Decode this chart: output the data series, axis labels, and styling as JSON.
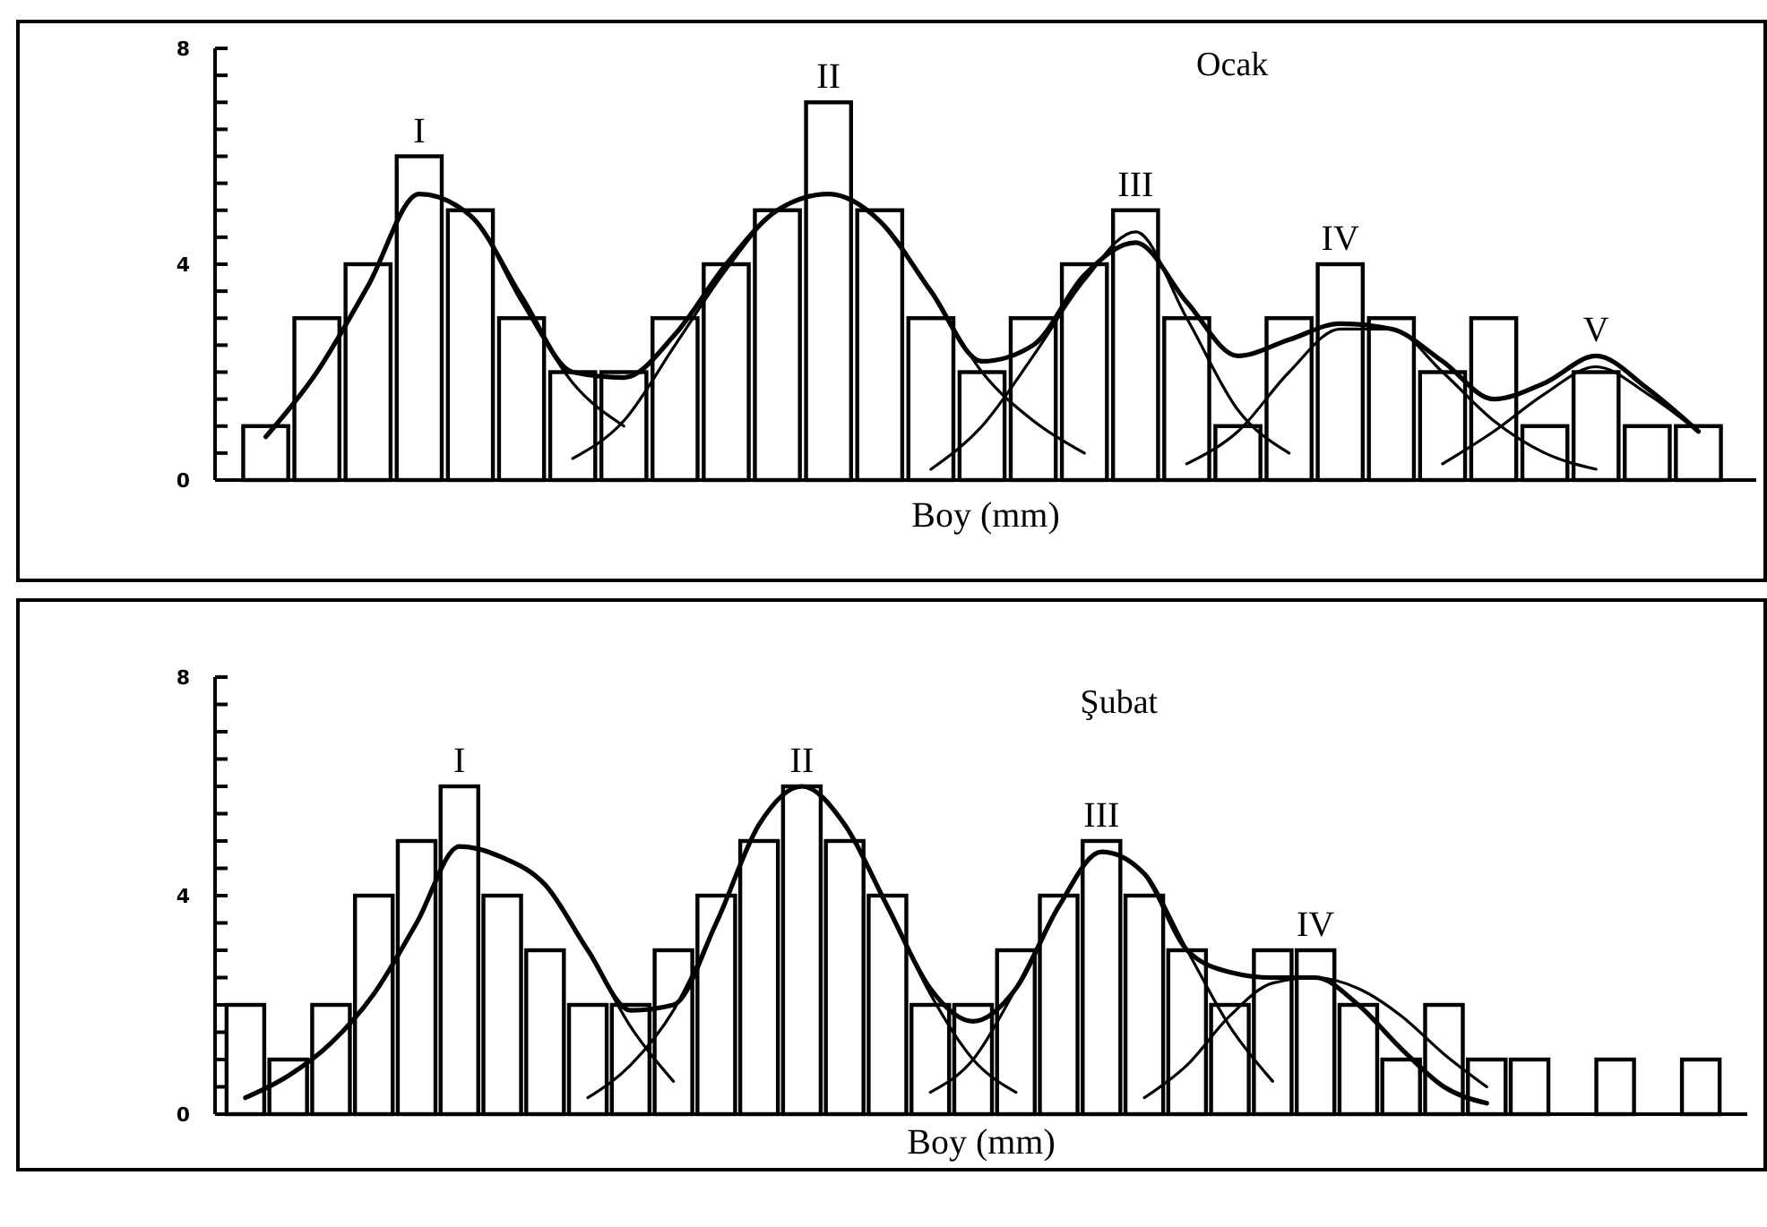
{
  "chart_data": [
    {
      "type": "bar",
      "title": "Ocak",
      "xlabel": "Boy (mm)",
      "categories": [
        null,
        null,
        null,
        null,
        null,
        null,
        null,
        null,
        null,
        null,
        null,
        null,
        null,
        null,
        null,
        null,
        null,
        null,
        null,
        null,
        null,
        null,
        null,
        null,
        null,
        null,
        null,
        null,
        null
      ],
      "ylim": [
        0,
        8
      ],
      "yticks": [
        0,
        {
          "value": 0.5,
          "label": null
        },
        {
          "value": 1,
          "label": null
        },
        {
          "value": 1.5,
          "label": null
        },
        {
          "value": 2,
          "label": null
        },
        {
          "value": 2.5,
          "label": null
        },
        {
          "value": 3,
          "label": null
        },
        {
          "value": 3.5,
          "label": null
        },
        4,
        {
          "value": 4.5,
          "label": null
        },
        {
          "value": 5,
          "label": null
        },
        {
          "value": 5.5,
          "label": null
        },
        {
          "value": 6,
          "label": null
        },
        {
          "value": 6.5,
          "label": null
        },
        {
          "value": 7,
          "label": null
        },
        {
          "value": 7.5,
          "label": null
        },
        8
      ],
      "series": [
        {
          "color": "#ffffff",
          "values": [
            1,
            3,
            4,
            6,
            5,
            3,
            2,
            2,
            3,
            4,
            5,
            7,
            5,
            3,
            2,
            3,
            4,
            5,
            3,
            1,
            3,
            4,
            3,
            2,
            3,
            1,
            2,
            1,
            1
          ]
        },
        {
          "type": "line",
          "color": "#000000",
          "values": [
            0.8,
            2.0,
            3.6,
            5.3,
            4.9,
            3.4,
            2.0,
            1.9,
            2.7,
            4.0,
            5.0,
            5.3,
            4.8,
            3.5,
            2.2,
            2.5,
            3.8,
            4.4,
            3.3,
            2.3,
            2.6,
            2.9,
            2.8,
            2.2,
            1.5,
            1.8,
            2.3,
            1.7,
            0.9
          ]
        },
        {
          "type": "line",
          "name": "I",
          "color": "#000000",
          "values": [
            0.8,
            2.0,
            3.6,
            5.3,
            4.9,
            3.3,
            1.8,
            1.0,
            null,
            null,
            null,
            null,
            null,
            null,
            null,
            null,
            null,
            null,
            null,
            null,
            null,
            null,
            null,
            null,
            null,
            null,
            null,
            null,
            null
          ]
        },
        {
          "type": "line",
          "name": "II",
          "color": "#000000",
          "values": [
            null,
            null,
            null,
            null,
            null,
            null,
            0.4,
            1.1,
            2.5,
            3.9,
            5.0,
            5.3,
            4.8,
            3.5,
            2.0,
            1.1,
            0.5,
            null,
            null,
            null,
            null,
            null,
            null,
            null,
            null,
            null,
            null,
            null,
            null
          ]
        },
        {
          "type": "line",
          "name": "III",
          "color": "#000000",
          "values": [
            null,
            null,
            null,
            null,
            null,
            null,
            null,
            null,
            null,
            null,
            null,
            null,
            null,
            0.2,
            1.0,
            2.3,
            3.7,
            4.6,
            3.0,
            1.3,
            0.5,
            null,
            null,
            null,
            null,
            null,
            null,
            null,
            null
          ]
        },
        {
          "type": "line",
          "name": "IV",
          "color": "#000000",
          "values": [
            null,
            null,
            null,
            null,
            null,
            null,
            null,
            null,
            null,
            null,
            null,
            null,
            null,
            null,
            null,
            null,
            null,
            null,
            0.3,
            0.9,
            2.0,
            2.8,
            2.8,
            2.0,
            1.1,
            0.5,
            0.2,
            null,
            null
          ]
        },
        {
          "type": "line",
          "name": "V",
          "color": "#000000",
          "values": [
            null,
            null,
            null,
            null,
            null,
            null,
            null,
            null,
            null,
            null,
            null,
            null,
            null,
            null,
            null,
            null,
            null,
            null,
            null,
            null,
            null,
            null,
            null,
            0.3,
            0.9,
            1.6,
            2.1,
            1.6,
            0.9
          ]
        }
      ]
    },
    {
      "type": "bar",
      "title": "Şubat",
      "xlabel": "Boy (mm)",
      "categories": [
        null,
        null,
        null,
        null,
        null,
        null,
        null,
        null,
        null,
        null,
        null,
        null,
        null,
        null,
        null,
        null,
        null,
        null,
        null,
        null,
        null,
        null,
        null,
        null,
        null,
        null,
        null,
        null,
        null,
        null,
        null,
        null,
        null,
        null,
        null
      ],
      "ylim": [
        0,
        8
      ],
      "yticks": [
        0,
        {
          "value": 0.5,
          "label": null
        },
        {
          "value": 1,
          "label": null
        },
        {
          "value": 1.5,
          "label": null
        },
        {
          "value": 2,
          "label": null
        },
        {
          "value": 2.5,
          "label": null
        },
        {
          "value": 3,
          "label": null
        },
        {
          "value": 3.5,
          "label": null
        },
        4,
        {
          "value": 4.5,
          "label": null
        },
        {
          "value": 5,
          "label": null
        },
        {
          "value": 5.5,
          "label": null
        },
        {
          "value": 6,
          "label": null
        },
        {
          "value": 6.5,
          "label": null
        },
        {
          "value": 7,
          "label": null
        },
        {
          "value": 7.5,
          "label": null
        },
        8
      ],
      "series": [
        {
          "color": "#ffffff",
          "values": [
            2,
            1,
            2,
            4,
            5,
            6,
            4,
            3,
            2,
            2,
            3,
            4,
            5,
            6,
            5,
            4,
            2,
            2,
            3,
            4,
            5,
            4,
            3,
            2,
            3,
            3,
            2,
            1,
            2,
            1,
            1,
            0,
            1,
            0,
            1
          ]
        },
        {
          "type": "line",
          "color": "#000000",
          "values": [
            0.3,
            0.7,
            1.3,
            2.2,
            3.5,
            4.9,
            4.7,
            4.2,
            3.0,
            1.9,
            2.0,
            3.5,
            5.3,
            6.0,
            5.3,
            3.8,
            2.3,
            1.7,
            2.3,
            3.8,
            4.8,
            4.4,
            3.0,
            2.6,
            2.5,
            2.5,
            2.0,
            1.2,
            0.5,
            0.2,
            null,
            null,
            null,
            null,
            null
          ]
        },
        {
          "type": "line",
          "name": "I",
          "color": "#000000",
          "values": [
            0.3,
            0.7,
            1.3,
            2.2,
            3.5,
            4.9,
            4.7,
            4.2,
            3.0,
            1.6,
            0.6,
            null,
            null,
            null,
            null,
            null,
            null,
            null,
            null,
            null,
            null,
            null,
            null,
            null,
            null,
            null,
            null,
            null,
            null,
            null,
            null,
            null,
            null,
            null,
            null
          ]
        },
        {
          "type": "line",
          "name": "II",
          "color": "#000000",
          "values": [
            null,
            null,
            null,
            null,
            null,
            null,
            null,
            null,
            0.3,
            0.9,
            1.9,
            3.5,
            5.3,
            6.0,
            5.3,
            3.8,
            2.2,
            1.0,
            0.4,
            null,
            null,
            null,
            null,
            null,
            null,
            null,
            null,
            null,
            null,
            null,
            null,
            null,
            null,
            null,
            null
          ]
        },
        {
          "type": "line",
          "name": "III",
          "color": "#000000",
          "values": [
            null,
            null,
            null,
            null,
            null,
            null,
            null,
            null,
            null,
            null,
            null,
            null,
            null,
            null,
            null,
            null,
            0.4,
            1.0,
            2.3,
            3.8,
            4.8,
            4.4,
            3.0,
            1.6,
            0.6,
            null,
            null,
            null,
            null,
            null,
            null,
            null,
            null,
            null,
            null
          ]
        },
        {
          "type": "line",
          "name": "IV",
          "color": "#000000",
          "values": [
            null,
            null,
            null,
            null,
            null,
            null,
            null,
            null,
            null,
            null,
            null,
            null,
            null,
            null,
            null,
            null,
            null,
            null,
            null,
            null,
            null,
            0.3,
            0.9,
            1.8,
            2.4,
            2.5,
            2.3,
            1.8,
            1.1,
            0.5,
            null,
            null,
            null,
            null,
            null
          ]
        }
      ]
    }
  ]
}
